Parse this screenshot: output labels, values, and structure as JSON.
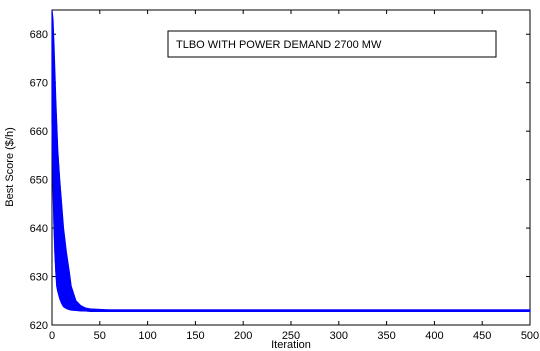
{
  "chart_data": {
    "type": "line",
    "title": "",
    "xlabel": "Iteration",
    "ylabel": "Best Score ($/h)",
    "xlim": [
      0,
      500
    ],
    "ylim": [
      620,
      685
    ],
    "xticks": [
      0,
      50,
      100,
      150,
      200,
      250,
      300,
      350,
      400,
      450,
      500
    ],
    "yticks": [
      620,
      630,
      640,
      650,
      660,
      670,
      680
    ],
    "grid": false,
    "annotation": "TLBO WITH POWER DEMAND 2700 MW",
    "line_color": "#0000ff",
    "series": [
      {
        "upper": {
          "x": [
            0,
            1,
            2,
            3,
            4,
            5,
            6,
            8,
            10,
            12,
            15,
            18,
            20,
            25,
            30,
            35,
            40,
            50,
            60,
            100,
            200,
            300,
            400,
            500
          ],
          "y": [
            685,
            683,
            678,
            672,
            666,
            661,
            656,
            650,
            645,
            640,
            635,
            631,
            628,
            625,
            624,
            623.5,
            623.3,
            623.2,
            623.1,
            623.1,
            623.1,
            623.1,
            623.1,
            623.1
          ]
        },
        "lower": {
          "x": [
            0,
            1,
            2,
            3,
            4,
            5,
            6,
            8,
            10,
            12,
            15,
            18,
            20,
            25,
            30,
            35,
            40,
            50,
            60,
            100,
            200,
            300,
            400,
            500
          ],
          "y": [
            662,
            650,
            641,
            635,
            631,
            628,
            627,
            625.5,
            624.5,
            623.8,
            623.4,
            623.2,
            623.1,
            623.0,
            622.9,
            622.9,
            622.8,
            622.8,
            622.8,
            622.8,
            622.8,
            622.8,
            622.8,
            622.8
          ]
        }
      }
    ]
  }
}
